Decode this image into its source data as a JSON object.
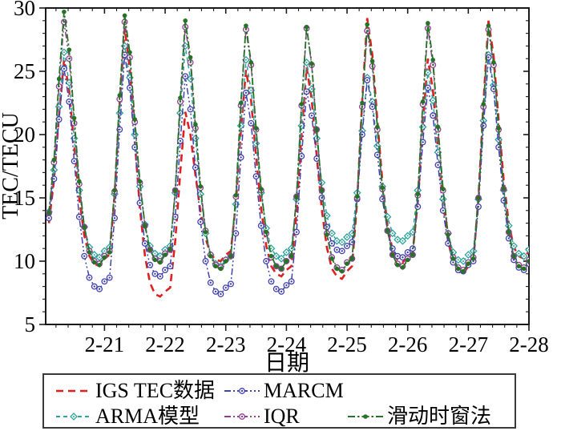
{
  "chart_data": {
    "type": "line",
    "title": "",
    "xlabel": "日期",
    "ylabel": "TEC/TECU",
    "x_axis": {
      "domain": [
        20.03,
        28
      ],
      "tick_values": [
        21,
        22,
        23,
        24,
        25,
        26,
        27,
        28
      ],
      "tick_labels": [
        "2-21",
        "2-22",
        "2-23",
        "2-24",
        "2-25",
        "2-26",
        "2-27",
        "2-28"
      ],
      "minor_step": 0.2,
      "unit": "date (February, fractional days)"
    },
    "y_axis": {
      "domain": [
        5,
        30
      ],
      "tick_values": [
        5,
        10,
        15,
        20,
        25,
        30
      ],
      "minor_step": 1
    },
    "grid": false,
    "legend_position": "bottom",
    "legend_rows": [
      [
        0,
        2
      ],
      [
        1,
        3,
        4
      ]
    ],
    "x": [
      20.083,
      20.167,
      20.25,
      20.333,
      20.417,
      20.5,
      20.583,
      20.667,
      20.75,
      20.833,
      20.917,
      21,
      21.083,
      21.167,
      21.25,
      21.333,
      21.417,
      21.5,
      21.583,
      21.667,
      21.75,
      21.833,
      21.917,
      22,
      22.083,
      22.167,
      22.25,
      22.333,
      22.417,
      22.5,
      22.583,
      22.667,
      22.75,
      22.833,
      22.917,
      23,
      23.083,
      23.167,
      23.25,
      23.333,
      23.417,
      23.5,
      23.583,
      23.667,
      23.75,
      23.833,
      23.917,
      24,
      24.083,
      24.167,
      24.25,
      24.333,
      24.417,
      24.5,
      24.583,
      24.667,
      24.75,
      24.833,
      24.917,
      25,
      25.083,
      25.167,
      25.25,
      25.333,
      25.417,
      25.5,
      25.583,
      25.667,
      25.75,
      25.833,
      25.917,
      26,
      26.083,
      26.167,
      26.25,
      26.333,
      26.417,
      26.5,
      26.583,
      26.667,
      26.75,
      26.833,
      26.917,
      27,
      27.083,
      27.167,
      27.25,
      27.333,
      27.417,
      27.5,
      27.583,
      27.667,
      27.75,
      27.833,
      27.917,
      28
    ],
    "series": [
      {
        "name": "IGS TEC数据",
        "slug": "igs-tec",
        "color": "#e02020",
        "dash": "9 6",
        "width": 2.6,
        "marker": "none",
        "marker_size": 0,
        "values": [
          13.0,
          16.4,
          21.5,
          25.9,
          23.5,
          19.1,
          15.0,
          12.0,
          10.4,
          9.8,
          9.6,
          10.2,
          10.5,
          15.2,
          22.4,
          28.4,
          25.2,
          19.5,
          14.2,
          10.4,
          8.3,
          7.4,
          7.2,
          7.6,
          7.9,
          11.6,
          17.1,
          21.8,
          20.0,
          16.8,
          13.9,
          11.8,
          10.6,
          10.1,
          10.0,
          10.5,
          10.8,
          14.5,
          20.3,
          25.1,
          22.7,
          18.3,
          14.2,
          11.2,
          9.6,
          9.0,
          8.8,
          9.3,
          9.6,
          13.8,
          20.0,
          25.3,
          22.8,
          18.3,
          14.1,
          11.1,
          9.4,
          8.8,
          8.6,
          9.2,
          9.6,
          14.8,
          22.6,
          29.2,
          26.3,
          21.1,
          16.3,
          12.8,
          10.9,
          10.1,
          9.9,
          10.4,
          10.7,
          14.7,
          20.8,
          26.0,
          23.5,
          18.9,
          14.6,
          11.6,
          9.9,
          9.2,
          9.0,
          9.6,
          10.0,
          15.0,
          22.6,
          29.0,
          26.2,
          21.1,
          16.4,
          13.0,
          11.1,
          10.4,
          10.2,
          10.8
        ]
      },
      {
        "name": "ARMA模型",
        "slug": "arma",
        "color": "#2fa49c",
        "dash": "5 4",
        "width": 1.5,
        "marker": "diamond",
        "marker_size": 4,
        "values": [
          13.9,
          17.2,
          22.2,
          26.5,
          24.1,
          19.7,
          15.6,
          12.7,
          11.1,
          10.5,
          10.3,
          10.8,
          11.1,
          15.3,
          21.7,
          27.0,
          24.5,
          20.0,
          15.9,
          12.9,
          11.2,
          10.6,
          10.4,
          10.9,
          11.2,
          15.4,
          21.7,
          27.0,
          24.4,
          19.7,
          15.3,
          12.2,
          10.5,
          9.8,
          9.6,
          10.1,
          10.4,
          14.5,
          20.7,
          25.9,
          23.5,
          19.3,
          15.4,
          12.6,
          11.0,
          10.4,
          10.2,
          10.7,
          11.0,
          14.9,
          20.7,
          25.7,
          23.6,
          19.7,
          16.2,
          13.6,
          12.2,
          11.6,
          11.5,
          11.9,
          12.2,
          15.4,
          20.3,
          24.5,
          22.6,
          19.1,
          15.9,
          13.5,
          12.2,
          11.7,
          11.6,
          12.0,
          12.3,
          15.6,
          20.6,
          24.9,
          22.7,
          18.6,
          14.9,
          12.2,
          10.7,
          10.1,
          10.0,
          10.5,
          10.8,
          14.9,
          21.1,
          26.3,
          23.9,
          19.6,
          15.6,
          12.8,
          11.2,
          10.6,
          10.4,
          10.9
        ]
      },
      {
        "name": "MARCM",
        "slug": "marcm",
        "color": "#4141b0",
        "dash": "8 3 2 3 2 3",
        "width": 1.5,
        "marker": "circle-dot",
        "marker_size": 3.3,
        "values": [
          13.4,
          16.5,
          21.2,
          25.2,
          22.6,
          17.9,
          13.5,
          10.4,
          8.7,
          8.0,
          7.8,
          8.4,
          8.7,
          13.4,
          20.4,
          26.3,
          23.7,
          19.0,
          14.6,
          11.4,
          9.7,
          9.0,
          8.8,
          9.3,
          9.6,
          13.5,
          19.5,
          24.6,
          22.0,
          17.4,
          13.1,
          10.0,
          8.3,
          7.6,
          7.4,
          7.9,
          8.2,
          12.2,
          18.2,
          23.3,
          20.9,
          16.7,
          12.8,
          10.0,
          8.4,
          7.8,
          7.6,
          8.1,
          8.4,
          12.3,
          18.3,
          23.4,
          21.5,
          18.1,
          15.0,
          12.7,
          11.4,
          10.9,
          10.8,
          11.2,
          11.5,
          14.9,
          20.0,
          24.3,
          22.2,
          18.4,
          14.9,
          12.4,
          11.0,
          10.4,
          10.3,
          10.7,
          11.0,
          14.3,
          19.4,
          23.7,
          21.5,
          17.6,
          14.0,
          11.4,
          9.9,
          9.3,
          9.2,
          9.7,
          10.0,
          14.3,
          20.7,
          26.1,
          23.6,
          19.0,
          14.8,
          11.8,
          10.1,
          9.5,
          9.3,
          9.8
        ]
      },
      {
        "name": "IQR",
        "slug": "iqr",
        "color": "#8f3f94",
        "dash": "8 3 2 3 2 3",
        "width": 1.5,
        "marker": "circle-dot",
        "marker_size": 3.3,
        "values": [
          13.8,
          17.8,
          23.8,
          28.9,
          26.0,
          20.9,
          16.1,
          12.7,
          10.8,
          10.0,
          9.8,
          10.4,
          10.8,
          15.5,
          22.8,
          28.9,
          26.1,
          21.0,
          16.2,
          12.8,
          10.9,
          10.2,
          10.0,
          10.6,
          10.9,
          15.6,
          22.6,
          28.5,
          25.7,
          20.5,
          15.8,
          12.4,
          10.5,
          9.7,
          9.5,
          10.1,
          10.4,
          15.1,
          22.3,
          28.3,
          25.5,
          20.4,
          15.6,
          12.2,
          10.3,
          9.6,
          9.4,
          10.0,
          10.4,
          15.1,
          22.3,
          28.4,
          25.5,
          20.4,
          15.6,
          12.2,
          10.3,
          9.5,
          9.3,
          9.9,
          10.2,
          15.0,
          22.2,
          28.2,
          25.4,
          20.4,
          15.7,
          12.4,
          10.5,
          9.8,
          9.6,
          10.2,
          10.5,
          15.2,
          22.4,
          28.4,
          25.5,
          20.4,
          15.6,
          12.2,
          10.3,
          9.5,
          9.3,
          9.9,
          10.3,
          15.0,
          22.2,
          28.3,
          25.5,
          20.4,
          15.7,
          12.3,
          10.4,
          9.7,
          9.5,
          10.1
        ]
      },
      {
        "name": "滑动时窗法",
        "slug": "sliding-window",
        "color": "#267326",
        "dash": "9 3 2.5 3",
        "width": 1.8,
        "marker": "dot",
        "marker_size": 2.8,
        "values": [
          13.8,
          18.0,
          24.4,
          29.7,
          26.7,
          21.3,
          16.3,
          12.7,
          10.7,
          9.9,
          9.7,
          10.3,
          10.7,
          15.6,
          23.1,
          29.4,
          26.5,
          21.2,
          16.3,
          12.8,
          10.9,
          10.1,
          9.9,
          10.5,
          10.9,
          15.6,
          22.9,
          29.0,
          26.1,
          20.8,
          15.9,
          12.3,
          10.4,
          9.6,
          9.4,
          10.0,
          10.4,
          15.2,
          22.5,
          28.6,
          25.7,
          20.5,
          15.7,
          12.3,
          10.4,
          9.6,
          9.4,
          10.0,
          10.4,
          15.1,
          22.4,
          28.5,
          25.6,
          20.4,
          15.6,
          12.1,
          10.2,
          9.4,
          9.2,
          9.8,
          10.2,
          15.1,
          22.5,
          28.7,
          25.8,
          20.6,
          15.8,
          12.4,
          10.5,
          9.7,
          9.5,
          10.1,
          10.5,
          15.3,
          22.6,
          28.8,
          25.9,
          20.6,
          15.7,
          12.1,
          10.2,
          9.4,
          9.2,
          9.8,
          10.2,
          15.0,
          22.4,
          28.6,
          25.7,
          20.5,
          15.7,
          12.3,
          10.4,
          9.6,
          9.4,
          10.0
        ]
      }
    ]
  }
}
